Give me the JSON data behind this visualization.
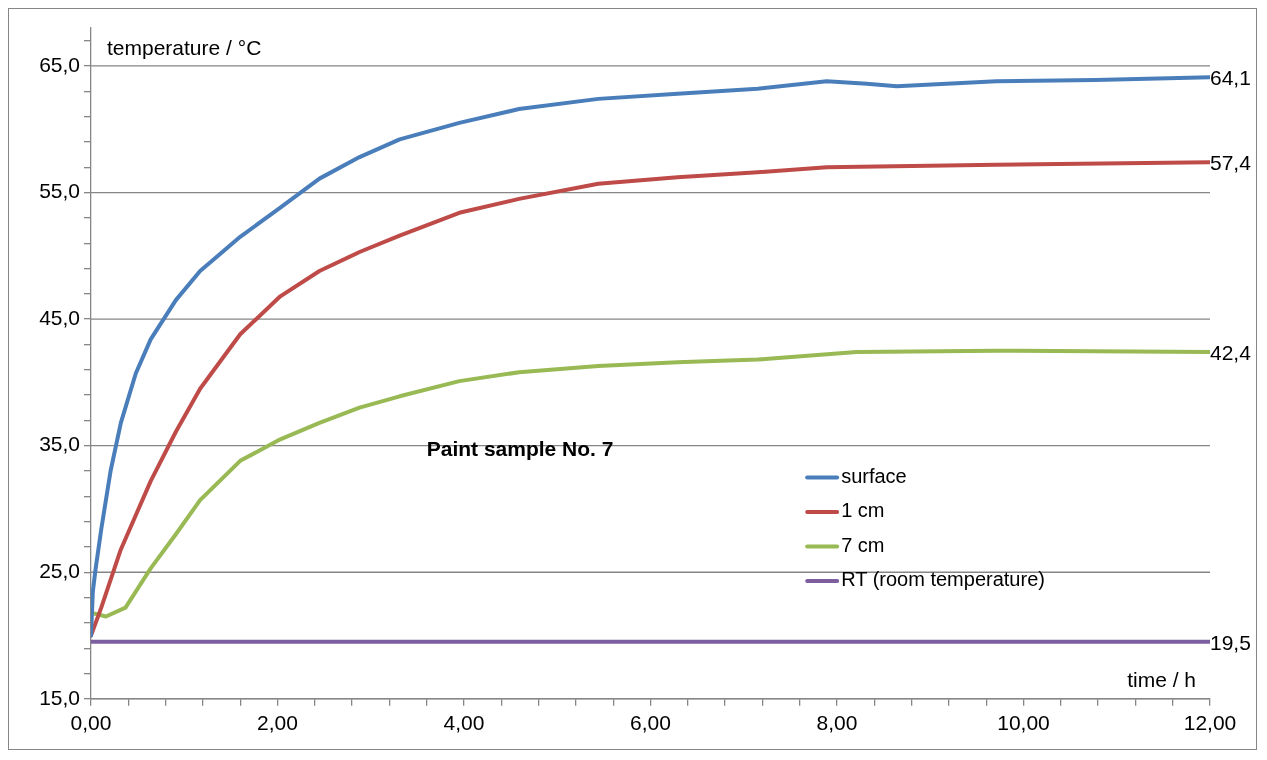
{
  "chart_data": {
    "type": "line",
    "xlabel": "time / h",
    "ylabel": "temperature / °C",
    "annotations": [
      "Paint sample No. 7"
    ],
    "xlim": [
      0,
      12
    ],
    "ylim": [
      15,
      68
    ],
    "xticks": [
      {
        "value": 0,
        "label": "0,00"
      },
      {
        "value": 0.4,
        "label": null
      },
      {
        "value": 0.8,
        "label": null
      },
      {
        "value": 1.2,
        "label": null
      },
      {
        "value": 1.6,
        "label": null
      },
      {
        "value": 2,
        "label": "2,00"
      },
      {
        "value": 2.4,
        "label": null
      },
      {
        "value": 2.8,
        "label": null
      },
      {
        "value": 3.2,
        "label": null
      },
      {
        "value": 3.6,
        "label": null
      },
      {
        "value": 4,
        "label": "4,00"
      },
      {
        "value": 4.4,
        "label": null
      },
      {
        "value": 4.8,
        "label": null
      },
      {
        "value": 5.2,
        "label": null
      },
      {
        "value": 5.6,
        "label": null
      },
      {
        "value": 6,
        "label": "6,00"
      },
      {
        "value": 6.4,
        "label": null
      },
      {
        "value": 6.8,
        "label": null
      },
      {
        "value": 7.2,
        "label": null
      },
      {
        "value": 7.6,
        "label": null
      },
      {
        "value": 8,
        "label": "8,00"
      },
      {
        "value": 8.4,
        "label": null
      },
      {
        "value": 8.8,
        "label": null
      },
      {
        "value": 9.2,
        "label": null
      },
      {
        "value": 9.6,
        "label": null
      },
      {
        "value": 10,
        "label": "10,00"
      },
      {
        "value": 10.4,
        "label": null
      },
      {
        "value": 10.8,
        "label": null
      },
      {
        "value": 11.2,
        "label": null
      },
      {
        "value": 11.6,
        "label": null
      },
      {
        "value": 12,
        "label": "12,00"
      }
    ],
    "yticks": [
      {
        "value": 15,
        "label": "15,0"
      },
      {
        "value": 17,
        "label": null
      },
      {
        "value": 19,
        "label": null
      },
      {
        "value": 21,
        "label": null
      },
      {
        "value": 23,
        "label": null
      },
      {
        "value": 25,
        "label": "25,0"
      },
      {
        "value": 27,
        "label": null
      },
      {
        "value": 29,
        "label": null
      },
      {
        "value": 31,
        "label": null
      },
      {
        "value": 33,
        "label": null
      },
      {
        "value": 35,
        "label": "35,0"
      },
      {
        "value": 37,
        "label": null
      },
      {
        "value": 39,
        "label": null
      },
      {
        "value": 41,
        "label": null
      },
      {
        "value": 43,
        "label": null
      },
      {
        "value": 45,
        "label": "45,0"
      },
      {
        "value": 47,
        "label": null
      },
      {
        "value": 49,
        "label": null
      },
      {
        "value": 51,
        "label": null
      },
      {
        "value": 53,
        "label": null
      },
      {
        "value": 55,
        "label": "55,0"
      },
      {
        "value": 57,
        "label": null
      },
      {
        "value": 59,
        "label": null
      },
      {
        "value": 61,
        "label": null
      },
      {
        "value": 63,
        "label": null
      },
      {
        "value": 65,
        "label": "65,0"
      },
      {
        "value": 67,
        "label": null
      }
    ],
    "grid": "y",
    "legend": "right",
    "marker": "none",
    "line_style": "solid",
    "series": [
      {
        "name": "surface",
        "color": "#4a7ebb",
        "x": [
          0,
          0.02,
          0.05,
          0.11,
          0.21,
          0.32,
          0.48,
          0.64,
          0.91,
          1.17,
          1.6,
          2.03,
          2.45,
          2.88,
          3.31,
          3.95,
          4.59,
          5.44,
          6.29,
          7.15,
          7.89,
          8.32,
          8.64,
          9.71,
          10.77,
          12
        ],
        "values": [
          20,
          23.5,
          25.3,
          28.4,
          33,
          36.8,
          40.7,
          43.4,
          46.5,
          48.8,
          51.5,
          53.8,
          56.1,
          57.8,
          59.2,
          60.5,
          61.6,
          62.4,
          62.8,
          63.2,
          63.8,
          63.6,
          63.4,
          63.8,
          63.9,
          64.1
        ],
        "value_labels": [
          null,
          null,
          null,
          null,
          null,
          null,
          null,
          null,
          null,
          null,
          null,
          null,
          null,
          null,
          null,
          null,
          null,
          null,
          null,
          null,
          null,
          null,
          null,
          null,
          null,
          "64,1"
        ]
      },
      {
        "name": "1 cm",
        "color": "#be4b48",
        "x": [
          0,
          0.11,
          0.32,
          0.64,
          0.91,
          1.17,
          1.6,
          2.03,
          2.45,
          2.88,
          3.31,
          3.95,
          4.59,
          5.44,
          6.29,
          7.15,
          7.89,
          9.71,
          12
        ],
        "values": [
          20,
          22.2,
          26.8,
          32.2,
          36.1,
          39.5,
          43.8,
          46.8,
          48.8,
          50.3,
          51.6,
          53.4,
          54.5,
          55.7,
          56.2,
          56.6,
          57,
          57.2,
          57.4
        ],
        "value_labels": [
          null,
          null,
          null,
          null,
          null,
          null,
          null,
          null,
          null,
          null,
          null,
          null,
          null,
          null,
          null,
          null,
          null,
          null,
          "57,4"
        ]
      },
      {
        "name": "7 cm",
        "color": "#98b954",
        "x": [
          0,
          0.16,
          0.37,
          0.64,
          0.91,
          1.17,
          1.6,
          2.03,
          2.45,
          2.88,
          3.31,
          3.95,
          4.59,
          5.44,
          6.29,
          7.15,
          8.21,
          9.71,
          12
        ],
        "values": [
          21.8,
          21.5,
          22.2,
          25.3,
          28,
          30.7,
          33.8,
          35.5,
          36.8,
          38,
          38.9,
          40.1,
          40.8,
          41.3,
          41.6,
          41.8,
          42.4,
          42.5,
          42.4
        ],
        "value_labels": [
          null,
          null,
          null,
          null,
          null,
          null,
          null,
          null,
          null,
          null,
          null,
          null,
          null,
          null,
          null,
          null,
          null,
          null,
          "42,4"
        ]
      },
      {
        "name": "RT (room temperature)",
        "color": "#7d5fa0",
        "x": [
          0,
          3,
          6,
          9,
          12
        ],
        "values": [
          19.5,
          19.5,
          19.5,
          19.5,
          19.5
        ],
        "value_labels": [
          null,
          null,
          null,
          null,
          "19,5"
        ]
      }
    ]
  }
}
